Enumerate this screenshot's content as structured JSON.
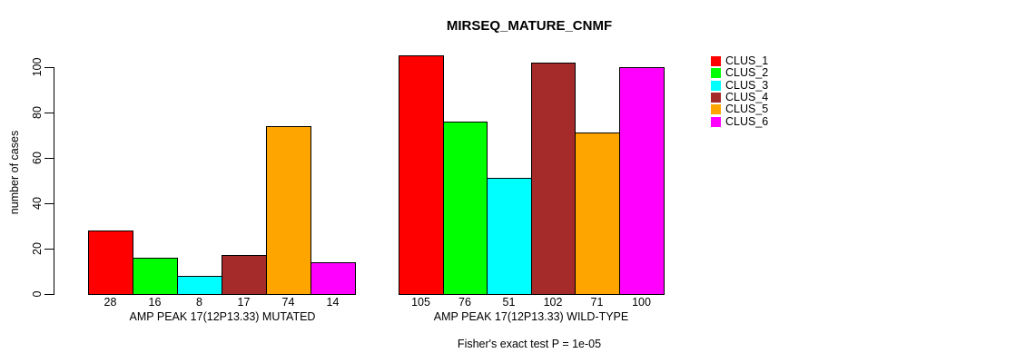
{
  "chart_data": {
    "type": "bar",
    "title": "MIRSEQ_MATURE_CNMF",
    "ylabel": "number of cases",
    "xlabel": "",
    "ylim": [
      0,
      100
    ],
    "yticks": [
      0,
      20,
      40,
      60,
      80,
      100
    ],
    "grid": false,
    "legend_position": "right-outside-top",
    "value_labels_shown": true,
    "categories": [
      "CLUS_1",
      "CLUS_2",
      "CLUS_3",
      "CLUS_4",
      "CLUS_5",
      "CLUS_6"
    ],
    "colors": [
      "#FF0000",
      "#00FF00",
      "#00FFFF",
      "#A52A2A",
      "#FFA500",
      "#FF00FF"
    ],
    "groups": [
      {
        "label": "AMP PEAK 17(12P13.33) MUTATED",
        "values": [
          28,
          16,
          8,
          17,
          74,
          14
        ]
      },
      {
        "label": "AMP PEAK 17(12P13.33) WILD-TYPE",
        "values": [
          105,
          76,
          51,
          102,
          71,
          100
        ]
      }
    ],
    "annotation": "Fisher's exact test P = 1e-05"
  }
}
